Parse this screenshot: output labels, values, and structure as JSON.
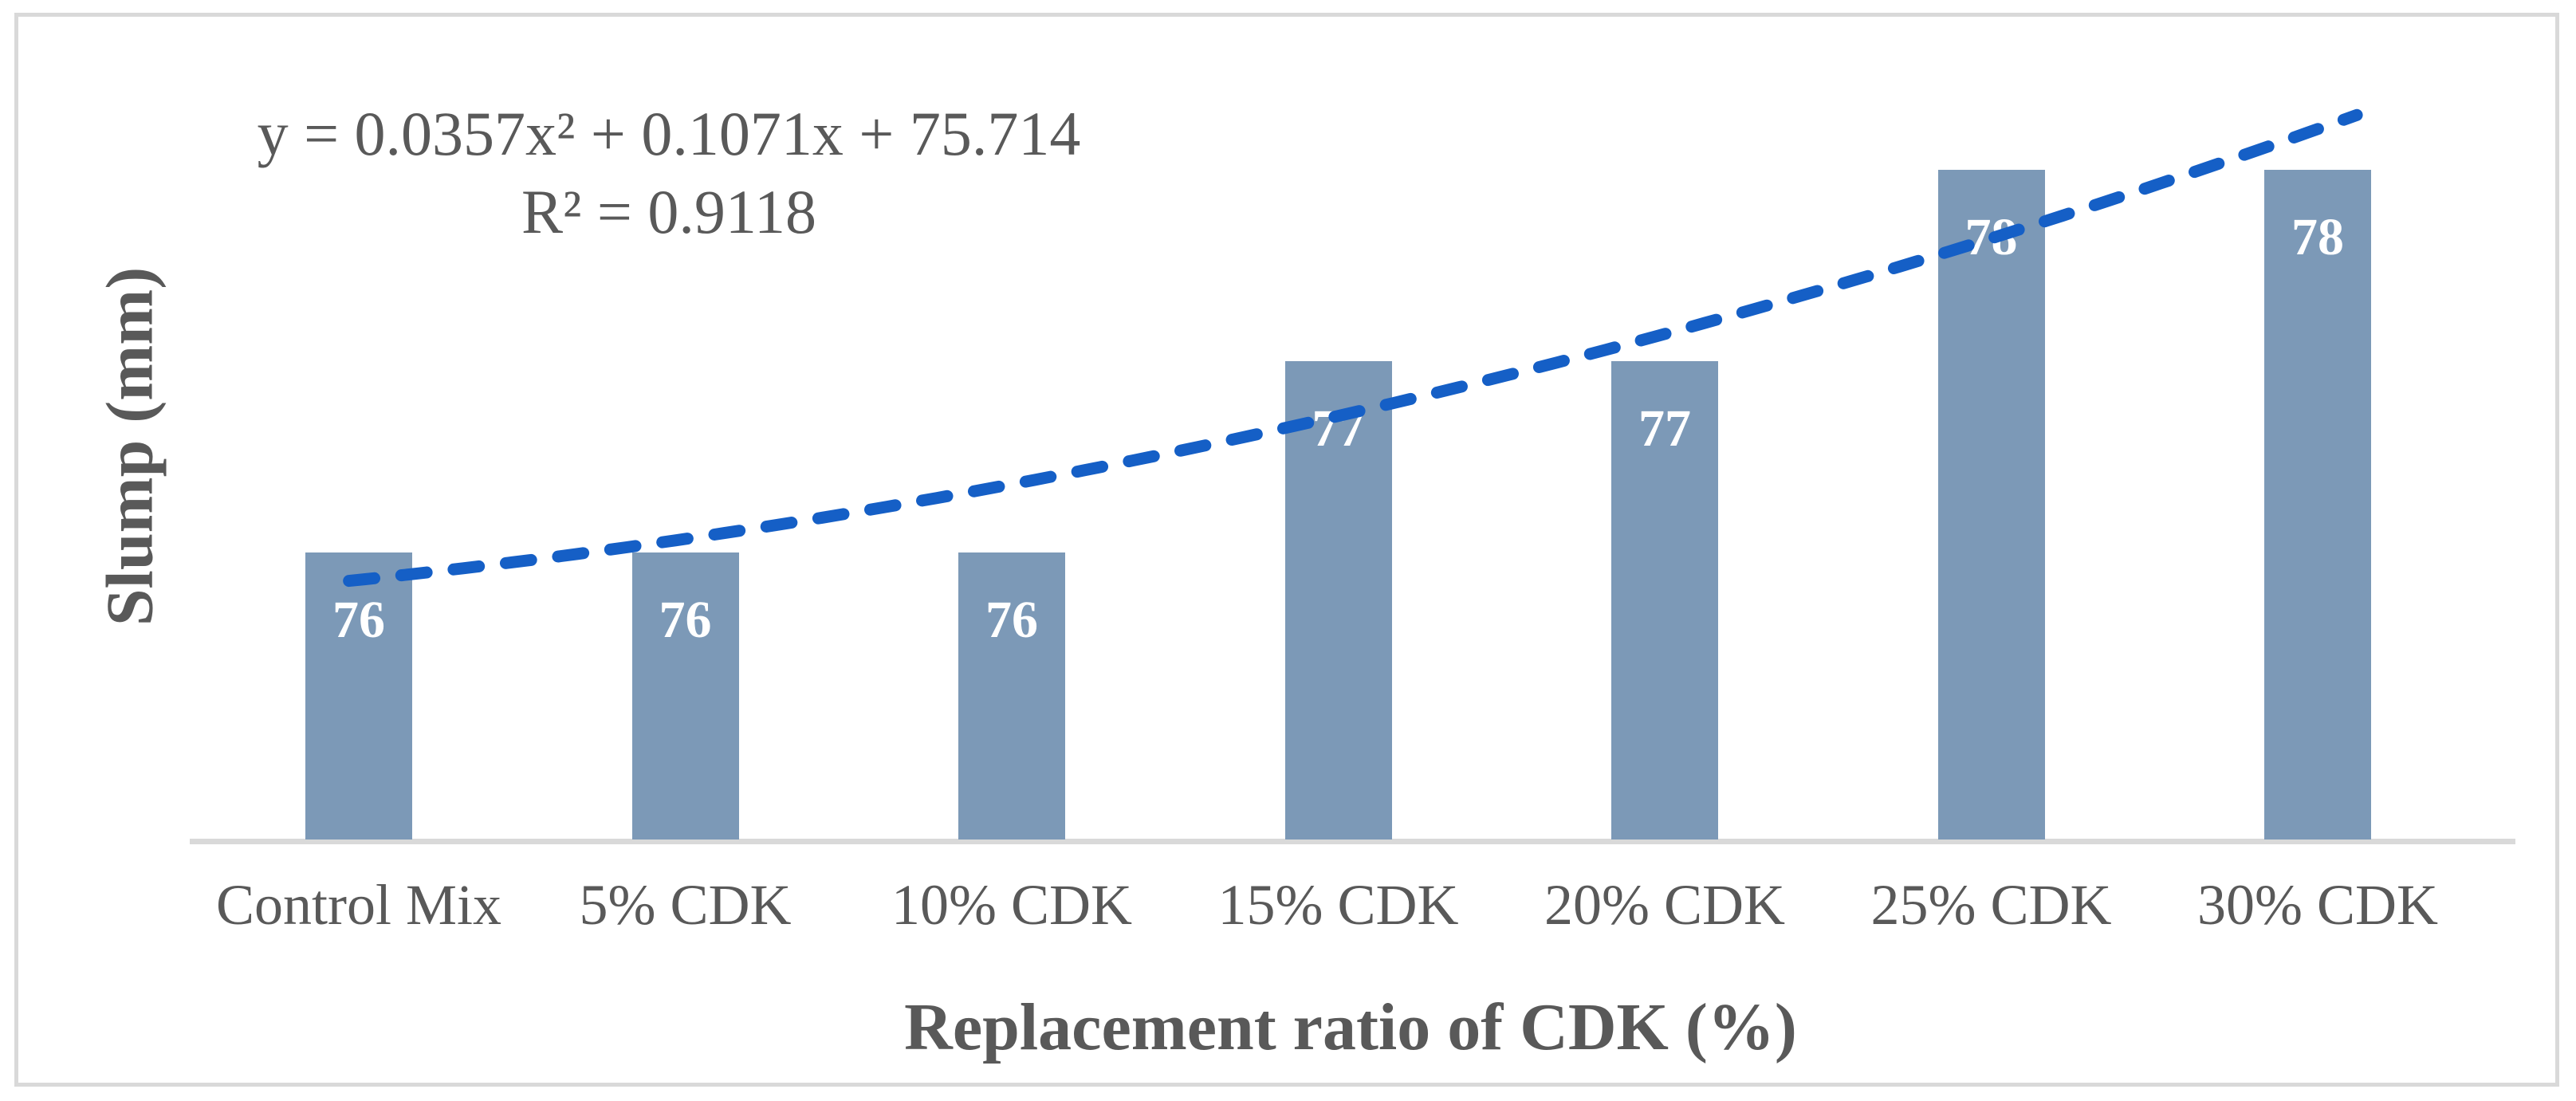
{
  "chart_data": {
    "type": "bar",
    "categories": [
      "Control Mix",
      "5% CDK",
      "10% CDK",
      "15% CDK",
      "20% CDK",
      "25% CDK",
      "30% CDK"
    ],
    "values": [
      76,
      76,
      76,
      77,
      77,
      78,
      78
    ],
    "bar_labels": [
      "76",
      "76",
      "76",
      "77",
      "77",
      "78",
      "78"
    ],
    "xlabel": "Replacement ratio of CDK (%)",
    "ylabel": "Slump (mm)",
    "ylim": [
      74.5,
      78.5
    ],
    "y_axis_ticks_visible": false,
    "grid": false,
    "legend_position": "none",
    "bar_color": "#7C99B7",
    "bar_label_color": "#FFFFFF",
    "text_color": "#595959",
    "axis_line_color": "#D9D9D9",
    "trendline": {
      "type": "polynomial",
      "order": 2,
      "a": 0.0357,
      "b": 0.1071,
      "c": 75.714,
      "equation_text": "y = 0.0357x² + 0.1071x + 75.714",
      "r_squared_text": "R² = 0.9118",
      "color": "#155FC6",
      "style": "dashed"
    }
  }
}
